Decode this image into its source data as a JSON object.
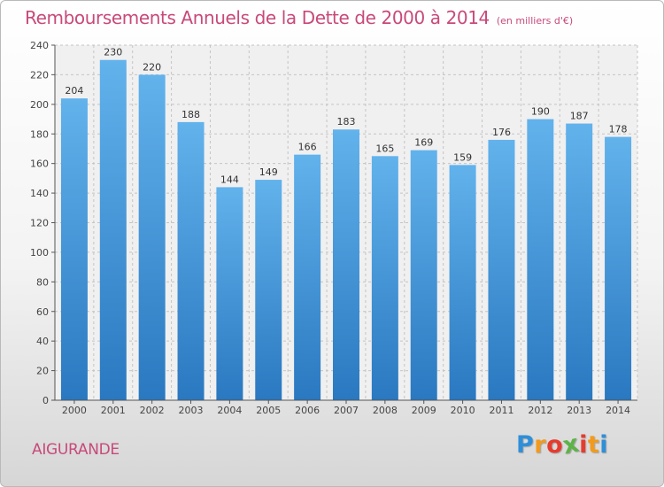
{
  "header": {
    "title": "Remboursements Annuels de la Dette de 2000 à 2014",
    "unit": "(en milliers d'€)"
  },
  "footer": {
    "city": "AIGURANDE",
    "logo_letters": [
      "P",
      "r",
      "o",
      "x",
      "i",
      "t",
      "i"
    ],
    "logo_colors": [
      "#2f8fd8",
      "#f29a1e",
      "#e63b2e",
      "#5db347",
      "#e63b2e",
      "#f29a1e",
      "#2f8fd8"
    ]
  },
  "colors": {
    "bar_top": "#62b2ec",
    "bar_bottom": "#2a78c0",
    "accent": "#c8497a"
  },
  "chart_data": {
    "type": "bar",
    "title": "Remboursements Annuels de la Dette de 2000 à 2014",
    "xlabel": "",
    "ylabel": "",
    "categories": [
      "2000",
      "2001",
      "2002",
      "2003",
      "2004",
      "2005",
      "2006",
      "2007",
      "2008",
      "2009",
      "2010",
      "2011",
      "2012",
      "2013",
      "2014"
    ],
    "values": [
      204,
      230,
      220,
      188,
      144,
      149,
      166,
      183,
      165,
      169,
      159,
      176,
      190,
      187,
      178
    ],
    "ylim": [
      0,
      240
    ],
    "yticks": [
      0,
      20,
      40,
      60,
      80,
      100,
      120,
      140,
      160,
      180,
      200,
      220,
      240
    ],
    "grid": true,
    "grid_style": "dashed"
  }
}
